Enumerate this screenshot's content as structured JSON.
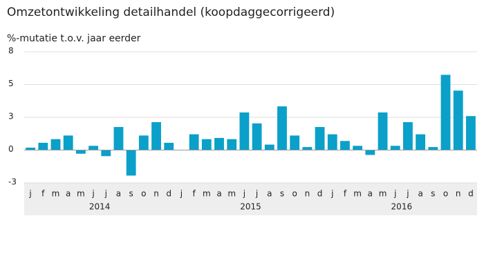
{
  "chart_data": {
    "type": "bar",
    "title": "Omzetontwikkeling detailhandel (koopdaggecorrigeerd)",
    "subtitle": "%-mutatie t.o.v. jaar eerder",
    "categories": [
      "j",
      "f",
      "m",
      "a",
      "m",
      "j",
      "j",
      "a",
      "s",
      "o",
      "n",
      "d",
      "j",
      "f",
      "m",
      "a",
      "m",
      "j",
      "j",
      "a",
      "s",
      "o",
      "n",
      "d",
      "j",
      "f",
      "m",
      "a",
      "m",
      "j",
      "j",
      "a",
      "s",
      "o",
      "n",
      "d"
    ],
    "years": [
      "2014",
      "2015",
      "2016"
    ],
    "values": [
      0.2,
      0.6,
      0.9,
      1.2,
      -0.3,
      0.35,
      -0.5,
      1.9,
      -2.1,
      1.2,
      2.3,
      0.6,
      0,
      1.3,
      0.9,
      1.0,
      0.9,
      3.1,
      2.2,
      0.45,
      3.6,
      1.2,
      0.25,
      1.9,
      1.3,
      0.75,
      0.35,
      -0.4,
      3.1,
      0.35,
      2.3,
      1.3,
      0.25,
      6.2,
      4.9,
      2.8
    ],
    "color": "#0aa0c9",
    "ylim": [
      -2.7,
      8.1
    ],
    "yticks": [
      {
        "value": -2.7,
        "label": "-3"
      },
      0,
      {
        "value": 2.7,
        "label": "3"
      },
      {
        "value": 5.4,
        "label": "5"
      },
      {
        "value": 8.1,
        "label": "8"
      }
    ],
    "grid": true
  }
}
